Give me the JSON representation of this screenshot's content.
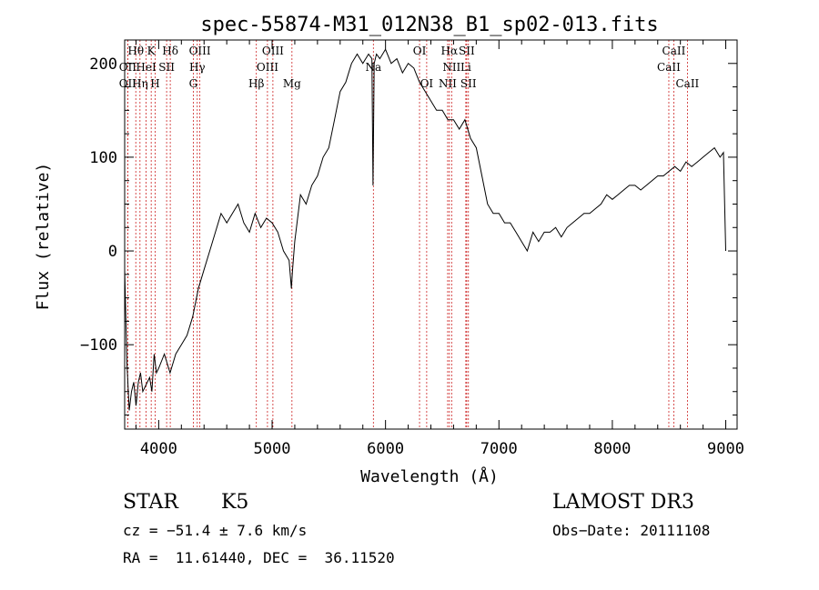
{
  "chart_data": {
    "type": "line",
    "title": "spec-55874-M31_012N38_B1_sp02-013.fits",
    "xlabel": "Wavelength (Å)",
    "ylabel": "Flux (relative)",
    "xlim": [
      3700,
      9100
    ],
    "ylim": [
      -190,
      225
    ],
    "xticks": [
      4000,
      5000,
      6000,
      7000,
      8000,
      9000
    ],
    "yticks": [
      -100,
      0,
      100,
      200
    ],
    "series": [
      {
        "x": [
          3700,
          3720,
          3740,
          3760,
          3780,
          3800,
          3820,
          3840,
          3860,
          3880,
          3900,
          3920,
          3940,
          3960,
          3980,
          4000,
          4050,
          4100,
          4150,
          4200,
          4250,
          4300,
          4350,
          4400,
          4450,
          4500,
          4550,
          4600,
          4650,
          4700,
          4750,
          4800,
          4850,
          4900,
          4950,
          5000,
          5050,
          5100,
          5150,
          5170,
          5180,
          5200,
          5250,
          5300,
          5350,
          5400,
          5450,
          5500,
          5550,
          5600,
          5650,
          5700,
          5750,
          5800,
          5850,
          5880,
          5890,
          5900,
          5920,
          5950,
          6000,
          6050,
          6100,
          6150,
          6200,
          6250,
          6300,
          6350,
          6400,
          6450,
          6500,
          6550,
          6600,
          6650,
          6700,
          6750,
          6800,
          6850,
          6900,
          6950,
          7000,
          7050,
          7100,
          7150,
          7200,
          7250,
          7300,
          7350,
          7400,
          7450,
          7500,
          7550,
          7600,
          7650,
          7700,
          7750,
          7800,
          7850,
          7900,
          7950,
          8000,
          8050,
          8100,
          8150,
          8200,
          8250,
          8300,
          8350,
          8400,
          8450,
          8500,
          8550,
          8600,
          8650,
          8700,
          8750,
          8800,
          8850,
          8900,
          8950,
          8980,
          9000
        ],
        "y": [
          -20,
          -120,
          -170,
          -150,
          -140,
          -165,
          -140,
          -130,
          -150,
          -145,
          -140,
          -135,
          -150,
          -110,
          -130,
          -125,
          -110,
          -130,
          -110,
          -100,
          -90,
          -70,
          -40,
          -20,
          0,
          20,
          40,
          30,
          40,
          50,
          30,
          20,
          40,
          25,
          35,
          30,
          20,
          0,
          -10,
          -40,
          -20,
          10,
          60,
          50,
          70,
          80,
          100,
          110,
          140,
          170,
          180,
          200,
          210,
          200,
          210,
          205,
          70,
          200,
          210,
          205,
          215,
          200,
          205,
          190,
          200,
          195,
          180,
          170,
          160,
          150,
          150,
          140,
          140,
          130,
          140,
          120,
          110,
          80,
          50,
          40,
          40,
          30,
          30,
          20,
          10,
          0,
          20,
          10,
          20,
          20,
          25,
          15,
          25,
          30,
          35,
          40,
          40,
          45,
          50,
          60,
          55,
          60,
          65,
          70,
          70,
          65,
          70,
          75,
          80,
          80,
          85,
          90,
          85,
          95,
          90,
          95,
          100,
          105,
          110,
          100,
          105,
          0
        ]
      }
    ],
    "line_markers": [
      {
        "name": "Hθ",
        "x": 3798,
        "row": 0
      },
      {
        "name": "OII",
        "x": 3727,
        "row": 1
      },
      {
        "name": "OII",
        "x": 3727,
        "row": 2
      },
      {
        "name": "K",
        "x": 3934,
        "row": 0
      },
      {
        "name": "HeI",
        "x": 3889,
        "row": 1
      },
      {
        "name": "Hη",
        "x": 3835,
        "row": 2
      },
      {
        "name": "SII",
        "x": 4070,
        "row": 1
      },
      {
        "name": "H",
        "x": 3969,
        "row": 2
      },
      {
        "name": "Hδ",
        "x": 4102,
        "row": 0
      },
      {
        "name": "OIII",
        "x": 4363,
        "row": 0
      },
      {
        "name": "Hγ",
        "x": 4340,
        "row": 1
      },
      {
        "name": "G",
        "x": 4305,
        "row": 2
      },
      {
        "name": "OIII",
        "x": 5007,
        "row": 0
      },
      {
        "name": "OIII",
        "x": 4959,
        "row": 1
      },
      {
        "name": "Hβ",
        "x": 4861,
        "row": 2
      },
      {
        "name": "Mg",
        "x": 5175,
        "row": 2
      },
      {
        "name": "Na",
        "x": 5893,
        "row": 1
      },
      {
        "name": "OI",
        "x": 6300,
        "row": 0
      },
      {
        "name": "OI",
        "x": 6363,
        "row": 2
      },
      {
        "name": "Hα",
        "x": 6563,
        "row": 0
      },
      {
        "name": "SII",
        "x": 6716,
        "row": 0
      },
      {
        "name": "NII",
        "x": 6583,
        "row": 1
      },
      {
        "name": "Li",
        "x": 6708,
        "row": 1
      },
      {
        "name": "NII",
        "x": 6548,
        "row": 2
      },
      {
        "name": "SII",
        "x": 6731,
        "row": 2
      },
      {
        "name": "CaII",
        "x": 8542,
        "row": 0
      },
      {
        "name": "CaII",
        "x": 8498,
        "row": 1
      },
      {
        "name": "CaII",
        "x": 8662,
        "row": 2
      }
    ]
  },
  "info": {
    "class": "STAR",
    "subclass": "K5",
    "survey": "LAMOST DR3",
    "cz": "cz = −51.4 ± 7.6 km/s",
    "obs_date": "Obs−Date: 20111108",
    "radec": "RA =  11.61440, DEC =  36.11520"
  },
  "colors": {
    "spectrum": "#000000",
    "marker_line": "#cc2222",
    "axis": "#000000"
  }
}
